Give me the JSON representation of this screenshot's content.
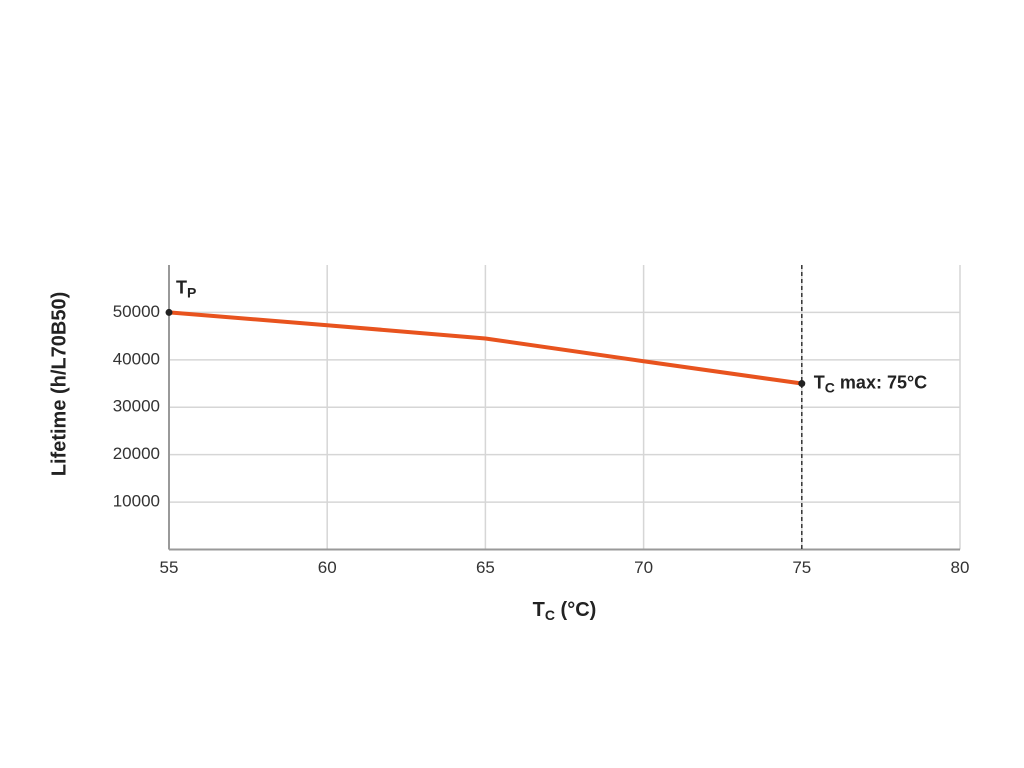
{
  "chart_data": {
    "type": "line",
    "y_label": "Lifetime (h/L70B50)",
    "x_label": {
      "text": "T",
      "sub": "C",
      "after": " (°C)"
    },
    "x": [
      55,
      60,
      65,
      70,
      75
    ],
    "series": [
      {
        "color": "#e8531e",
        "values": [
          50000,
          47300,
          44500,
          39700,
          35000
        ]
      }
    ],
    "xlim": [
      55,
      80
    ],
    "xticks": [
      55,
      60,
      65,
      70,
      75,
      80
    ],
    "ylim": [
      0,
      60000
    ],
    "yticks": [
      10000,
      20000,
      30000,
      40000,
      50000
    ],
    "grid": true,
    "annotations": [
      {
        "text": "T",
        "sub": "P",
        "x": 55,
        "y": 50000
      },
      {
        "text": "T",
        "sub": "C",
        "after": " max: 75°C",
        "x": 75,
        "y": 35000
      }
    ]
  }
}
